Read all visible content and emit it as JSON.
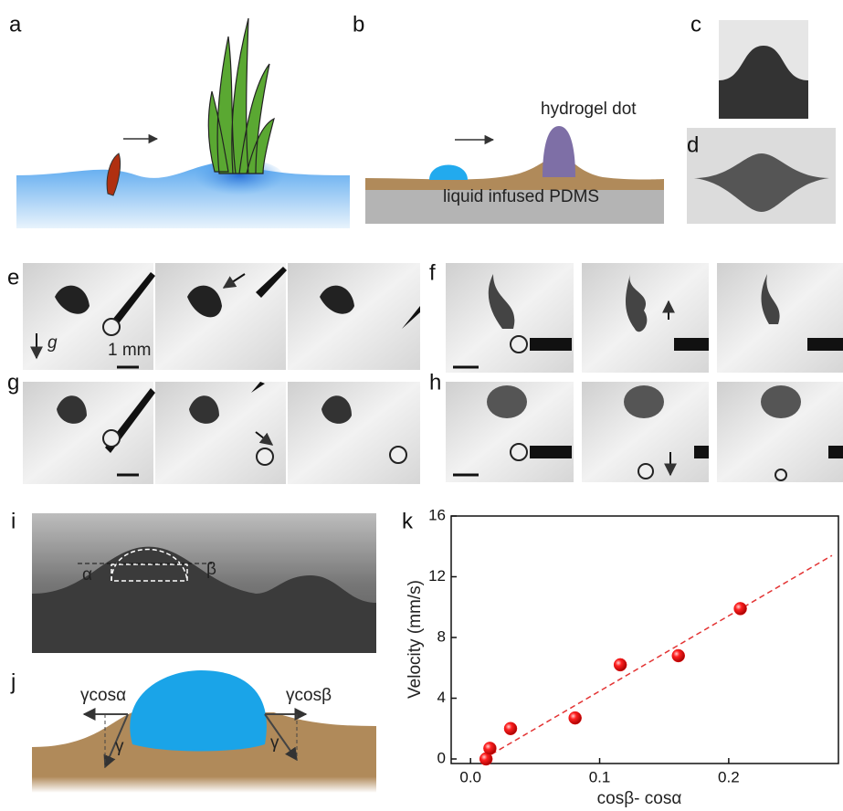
{
  "panel_labels": [
    "a",
    "b",
    "c",
    "d",
    "e",
    "f",
    "g",
    "h",
    "i",
    "j",
    "k"
  ],
  "panel_b": {
    "top_label": "hydrogel dot",
    "substrate_label": "liquid infused PDMS"
  },
  "panel_e": {
    "gravity": "g",
    "scale_bar": "1 mm"
  },
  "panel_i": {
    "left_angle": "α",
    "right_angle": "β"
  },
  "panel_j": {
    "left_force": "γcosα",
    "right_force": "γcosβ",
    "left_tension": "γ",
    "right_tension": "γ"
  },
  "chart_data": {
    "type": "scatter",
    "x_label": "cosβ- cosα",
    "y_label": "Velocity (mm/s)",
    "x": [
      0.012,
      0.015,
      0.031,
      0.081,
      0.116,
      0.161,
      0.209
    ],
    "y": [
      0.0,
      0.7,
      2.0,
      2.7,
      6.2,
      6.8,
      9.9
    ],
    "color": "#ee1111",
    "fit_line": {
      "x": [
        0.01,
        0.28
      ],
      "y": [
        0.0,
        13.4
      ],
      "color": "#e33333"
    },
    "xlim": [
      -0.015,
      0.285
    ],
    "ylim": [
      -0.3,
      16
    ],
    "xticks": [
      {
        "value": 0,
        "label": "0.0"
      },
      0.1,
      0.2
    ],
    "yticks": [
      0,
      4,
      8,
      12,
      16
    ]
  }
}
